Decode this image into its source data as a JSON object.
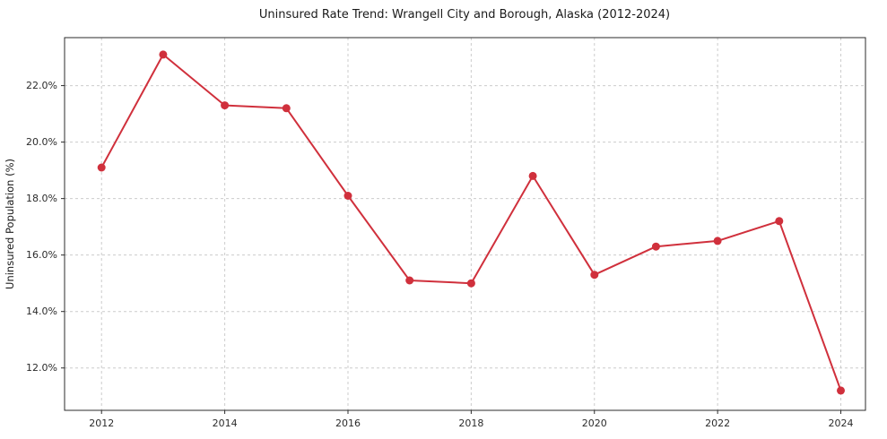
{
  "chart_data": {
    "type": "line",
    "title": "Uninsured Rate Trend: Wrangell City and Borough, Alaska (2012-2024)",
    "xlabel": "",
    "ylabel": "Uninsured Population (%)",
    "x": [
      2012,
      2013,
      2014,
      2015,
      2016,
      2017,
      2018,
      2019,
      2020,
      2021,
      2022,
      2023,
      2024
    ],
    "values": [
      19.1,
      23.1,
      21.3,
      21.2,
      18.1,
      15.1,
      15.0,
      18.8,
      15.3,
      16.3,
      16.5,
      17.2,
      11.2
    ],
    "xticks": [
      2012,
      2014,
      2016,
      2018,
      2020,
      2022,
      2024
    ],
    "yticks": [
      12,
      14,
      16,
      18,
      20,
      22
    ],
    "ytick_labels": [
      "12.0%",
      "14.0%",
      "16.0%",
      "18.0%",
      "20.0%",
      "22.0%"
    ],
    "xlim": [
      2011.4,
      2024.4
    ],
    "ylim": [
      10.5,
      23.7
    ],
    "grid": true,
    "grid_style": "dashed",
    "legend_position": "none",
    "colors": {
      "line": "#d0303c",
      "marker": "#d0303c",
      "grid": "#cccccc",
      "spine": "#2b2b2b",
      "background": "#ffffff"
    }
  }
}
